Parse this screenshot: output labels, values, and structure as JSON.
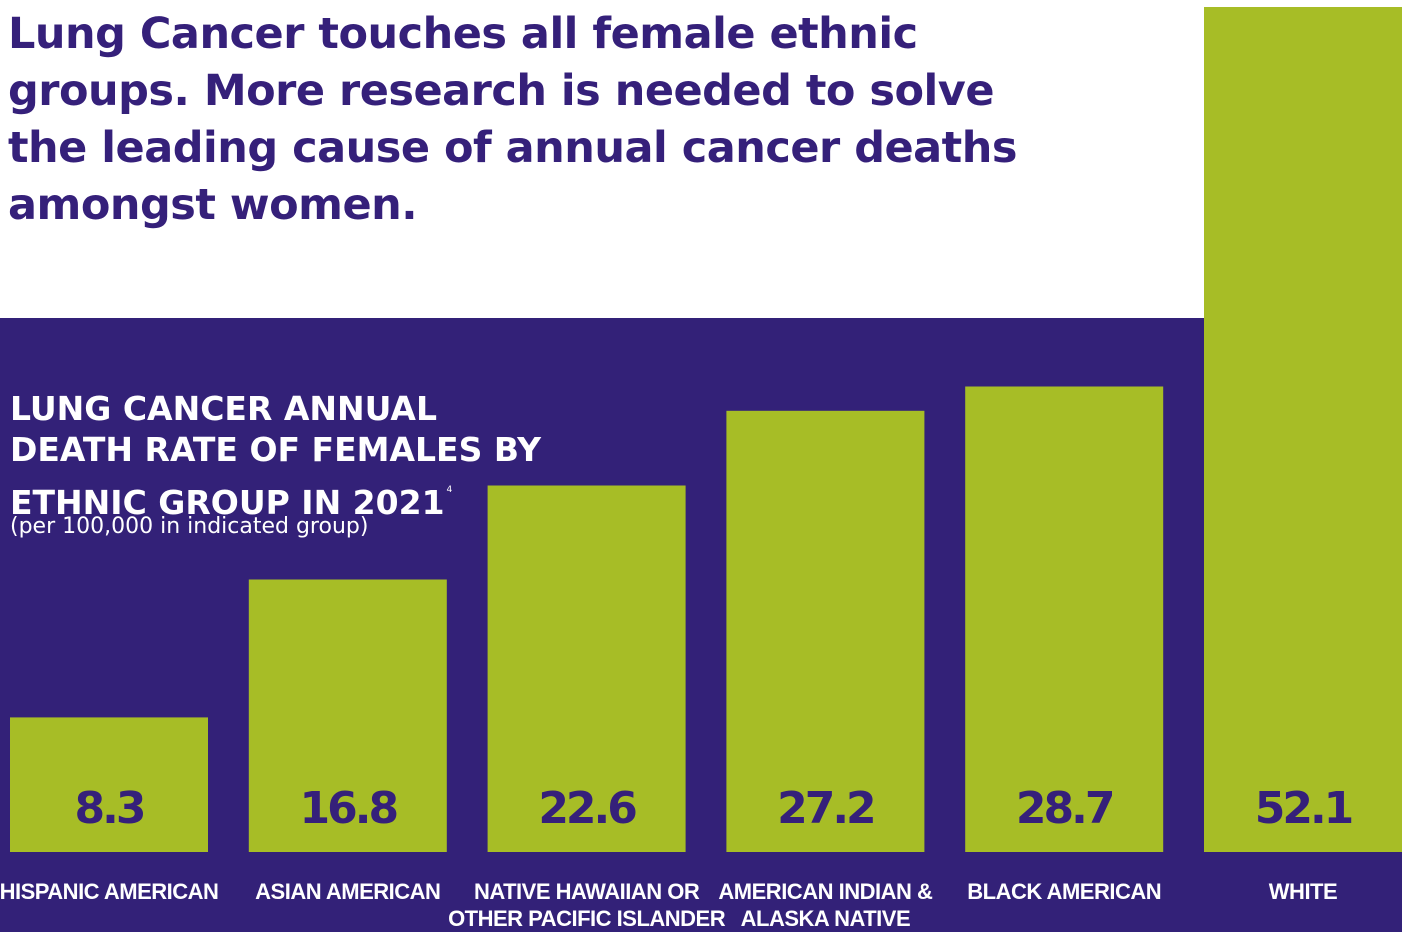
{
  "headline": "Lung Cancer touches all female ethnic groups. More research is needed to solve the leading cause of annual cancer deaths amongst women.",
  "colors": {
    "panel": "#332178",
    "bar": "#a7bd26",
    "headline_text": "#35207a",
    "value_text": "#35207a",
    "label_text": "#ffffff"
  },
  "chart_data": {
    "type": "bar",
    "title": "LUNG CANCER ANNUAL DEATH RATE OF FEMALES BY ETHNIC GROUP IN 2021",
    "title_footnote": "4",
    "subtitle": "(per 100,000 in indicated group)",
    "categories": [
      "HISPANIC AMERICAN",
      "ASIAN AMERICAN",
      "NATIVE HAWAIIAN OR OTHER PACIFIC ISLANDER",
      "AMERICAN INDIAN & ALASKA NATIVE",
      "BLACK AMERICAN",
      "WHITE"
    ],
    "category_lines": [
      [
        "HISPANIC AMERICAN"
      ],
      [
        "ASIAN AMERICAN"
      ],
      [
        "NATIVE HAWAIIAN OR",
        "OTHER PACIFIC ISLANDER"
      ],
      [
        "AMERICAN INDIAN &",
        "ALASKA NATIVE"
      ],
      [
        "BLACK AMERICAN"
      ],
      [
        "WHITE"
      ]
    ],
    "values": [
      8.3,
      16.8,
      22.6,
      27.2,
      28.7,
      52.1
    ],
    "value_labels": [
      "8.3",
      "16.8",
      "22.6",
      "27.2",
      "28.7",
      "52.1"
    ],
    "xlabel": "",
    "ylabel": "",
    "grid": false,
    "legend": "none"
  }
}
